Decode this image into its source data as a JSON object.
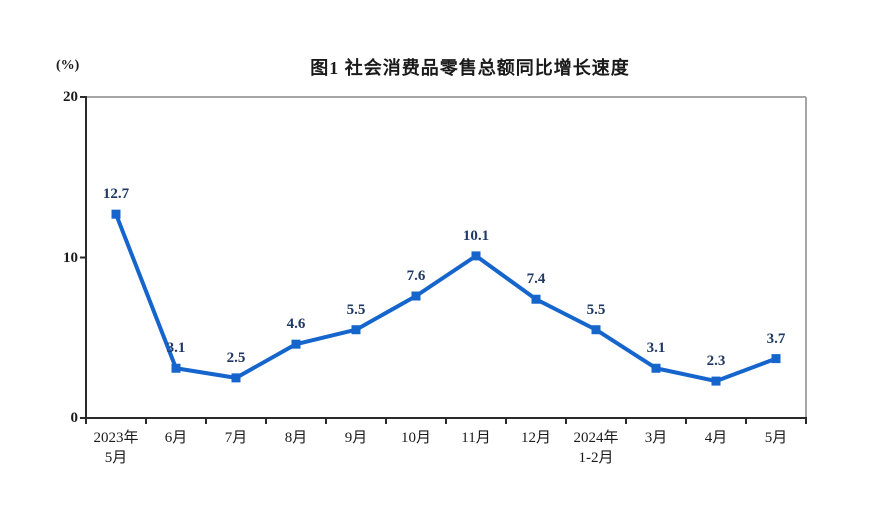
{
  "chart": {
    "title": "图1  社会消费品零售总额同比增长速度",
    "unit_label": "(%)",
    "colors": {
      "line": "#1565cd",
      "marker": "#1565cd",
      "value_label": "#1f3864",
      "axis_dark": "#2a2a2a",
      "box_border": "#a6a6a6",
      "tick_text": "#1a1a1a"
    }
  },
  "chart_data": {
    "type": "line",
    "title": "图1  社会消费品零售总额同比增长速度",
    "ylabel": "(%)",
    "categories": [
      "2023年\n5月",
      "6月",
      "7月",
      "8月",
      "9月",
      "10月",
      "11月",
      "12月",
      "2024年\n1-2月",
      "3月",
      "4月",
      "5月"
    ],
    "values": [
      12.7,
      3.1,
      2.5,
      4.6,
      5.5,
      7.6,
      10.1,
      7.4,
      5.5,
      3.1,
      2.3,
      3.7
    ],
    "ylim": [
      0,
      20
    ],
    "yticks": [
      0,
      10,
      20
    ],
    "grid": false,
    "legend": false,
    "marker": "square"
  }
}
